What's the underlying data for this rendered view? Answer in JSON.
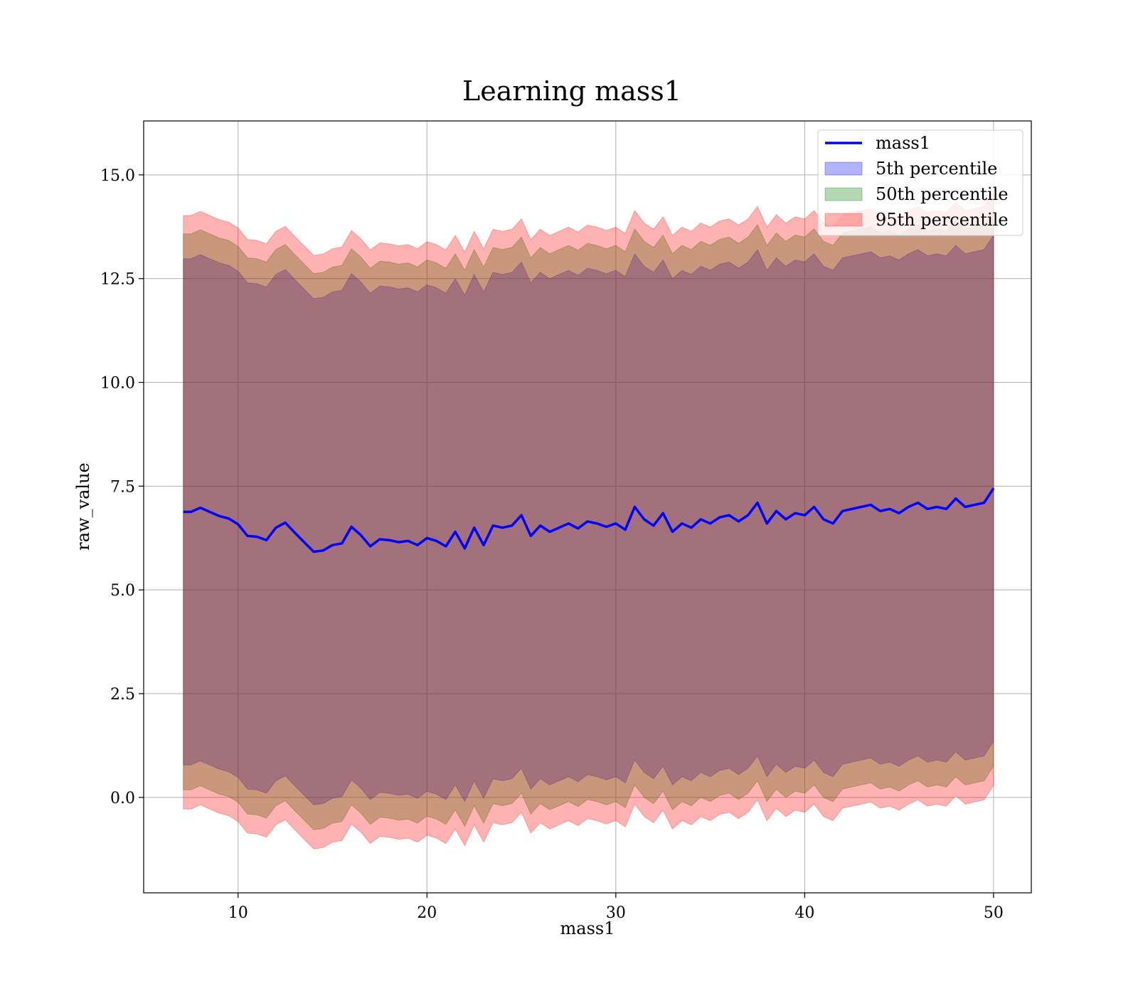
{
  "chart_data": {
    "type": "line",
    "title": "Learning mass1",
    "xlabel": "mass1",
    "ylabel": "raw_value",
    "xlim": [
      5,
      52
    ],
    "ylim": [
      -2.3,
      16.3
    ],
    "xticks": [
      10,
      20,
      30,
      40,
      50
    ],
    "yticks": [
      0.0,
      2.5,
      5.0,
      7.5,
      10.0,
      12.5,
      15.0
    ],
    "grid": true,
    "legend_position": "top-right",
    "legend": [
      "mass1",
      "5th percentile",
      "50th percentile",
      "95th percentile"
    ],
    "colors": {
      "line": "#0000ff",
      "band_5th": "#0000ff",
      "band_50th": "#008000",
      "band_95th": "#ff0000"
    },
    "x": [
      7.1,
      7.5,
      8.0,
      8.5,
      9.0,
      9.5,
      10.0,
      10.5,
      11.0,
      11.5,
      12.0,
      12.5,
      13.0,
      13.5,
      14.0,
      14.5,
      15.0,
      15.5,
      16.0,
      16.5,
      17.0,
      17.5,
      18.0,
      18.5,
      19.0,
      19.5,
      20.0,
      20.5,
      21.0,
      21.5,
      22.0,
      22.5,
      23.0,
      23.5,
      24.0,
      24.5,
      25.0,
      25.5,
      26.0,
      26.5,
      27.0,
      27.5,
      28.0,
      28.5,
      29.0,
      29.5,
      30.0,
      30.5,
      31.0,
      31.5,
      32.0,
      32.5,
      33.0,
      33.5,
      34.0,
      34.5,
      35.0,
      35.5,
      36.0,
      36.5,
      37.0,
      37.5,
      38.0,
      38.5,
      39.0,
      39.5,
      40.0,
      40.5,
      41.0,
      41.5,
      42.0,
      42.5,
      43.0,
      43.5,
      44.0,
      44.5,
      45.0,
      45.5,
      46.0,
      46.5,
      47.0,
      47.5,
      48.0,
      48.5,
      49.0,
      49.5,
      50.0
    ],
    "series": [
      {
        "name": "mass1",
        "values": [
          6.88,
          6.88,
          6.98,
          6.88,
          6.78,
          6.72,
          6.58,
          6.3,
          6.28,
          6.2,
          6.5,
          6.62,
          6.38,
          6.15,
          5.92,
          5.95,
          6.08,
          6.12,
          6.52,
          6.32,
          6.05,
          6.22,
          6.2,
          6.15,
          6.18,
          6.08,
          6.25,
          6.18,
          6.05,
          6.4,
          6.0,
          6.5,
          6.08,
          6.55,
          6.5,
          6.55,
          6.8,
          6.3,
          6.55,
          6.4,
          6.5,
          6.6,
          6.48,
          6.65,
          6.6,
          6.52,
          6.6,
          6.45,
          7.0,
          6.7,
          6.55,
          6.85,
          6.4,
          6.6,
          6.5,
          6.7,
          6.6,
          6.75,
          6.8,
          6.65,
          6.8,
          7.1,
          6.6,
          6.9,
          6.7,
          6.85,
          6.8,
          7.0,
          6.7,
          6.6,
          6.9,
          6.95,
          7.0,
          7.05,
          6.9,
          6.95,
          6.85,
          7.0,
          7.1,
          6.95,
          7.0,
          6.95,
          7.2,
          7.0,
          7.05,
          7.1,
          7.45
        ]
      },
      {
        "name": "5th percentile",
        "lower": [
          0.78,
          0.78,
          0.88,
          0.78,
          0.68,
          0.62,
          0.48,
          0.2,
          0.18,
          0.1,
          0.4,
          0.52,
          0.28,
          0.05,
          -0.18,
          -0.15,
          -0.02,
          0.02,
          0.42,
          0.22,
          -0.05,
          0.12,
          0.1,
          0.05,
          0.08,
          -0.02,
          0.15,
          0.08,
          -0.05,
          0.3,
          -0.1,
          0.4,
          -0.02,
          0.45,
          0.4,
          0.45,
          0.7,
          0.2,
          0.45,
          0.3,
          0.4,
          0.5,
          0.38,
          0.55,
          0.5,
          0.42,
          0.5,
          0.35,
          0.9,
          0.6,
          0.45,
          0.75,
          0.3,
          0.5,
          0.4,
          0.6,
          0.5,
          0.65,
          0.7,
          0.55,
          0.7,
          1.0,
          0.5,
          0.8,
          0.6,
          0.75,
          0.7,
          0.9,
          0.6,
          0.5,
          0.8,
          0.85,
          0.9,
          0.95,
          0.8,
          0.85,
          0.75,
          0.9,
          1.0,
          0.85,
          0.9,
          0.85,
          1.1,
          0.9,
          0.95,
          1.0,
          1.35
        ],
        "upper": [
          12.98,
          12.98,
          13.08,
          12.98,
          12.88,
          12.82,
          12.68,
          12.4,
          12.38,
          12.3,
          12.6,
          12.72,
          12.48,
          12.25,
          12.02,
          12.05,
          12.18,
          12.22,
          12.62,
          12.42,
          12.15,
          12.32,
          12.3,
          12.25,
          12.28,
          12.18,
          12.35,
          12.28,
          12.15,
          12.5,
          12.1,
          12.6,
          12.18,
          12.65,
          12.6,
          12.65,
          12.9,
          12.4,
          12.65,
          12.5,
          12.6,
          12.7,
          12.58,
          12.75,
          12.7,
          12.62,
          12.7,
          12.55,
          13.1,
          12.8,
          12.65,
          12.95,
          12.5,
          12.7,
          12.6,
          12.8,
          12.7,
          12.85,
          12.9,
          12.75,
          12.9,
          13.2,
          12.7,
          13.0,
          12.8,
          12.95,
          12.9,
          13.1,
          12.8,
          12.7,
          13.0,
          13.05,
          13.1,
          13.15,
          13.0,
          13.05,
          12.95,
          13.1,
          13.2,
          13.05,
          13.1,
          13.05,
          13.3,
          13.1,
          13.15,
          13.2,
          13.55
        ]
      },
      {
        "name": "50th percentile",
        "lower": [
          0.18,
          0.18,
          0.28,
          0.18,
          0.08,
          0.02,
          -0.12,
          -0.4,
          -0.42,
          -0.5,
          -0.2,
          -0.08,
          -0.32,
          -0.55,
          -0.78,
          -0.75,
          -0.62,
          -0.58,
          -0.18,
          -0.38,
          -0.65,
          -0.48,
          -0.5,
          -0.55,
          -0.52,
          -0.62,
          -0.45,
          -0.52,
          -0.65,
          -0.3,
          -0.7,
          -0.2,
          -0.62,
          -0.15,
          -0.2,
          -0.15,
          0.1,
          -0.4,
          -0.15,
          -0.3,
          -0.2,
          -0.1,
          -0.22,
          -0.05,
          -0.1,
          -0.18,
          -0.1,
          -0.25,
          0.3,
          0.0,
          -0.15,
          0.15,
          -0.3,
          -0.1,
          -0.2,
          0.0,
          -0.1,
          0.05,
          0.1,
          -0.05,
          0.1,
          0.4,
          -0.1,
          0.2,
          0.0,
          0.15,
          0.1,
          0.3,
          0.0,
          -0.1,
          0.2,
          0.25,
          0.3,
          0.35,
          0.2,
          0.25,
          0.15,
          0.3,
          0.4,
          0.25,
          0.3,
          0.25,
          0.5,
          0.3,
          0.35,
          0.4,
          0.75
        ],
        "upper": [
          13.58,
          13.58,
          13.68,
          13.58,
          13.48,
          13.42,
          13.28,
          13.0,
          12.98,
          12.9,
          13.2,
          13.32,
          13.08,
          12.85,
          12.62,
          12.65,
          12.78,
          12.82,
          13.22,
          13.02,
          12.75,
          12.92,
          12.9,
          12.85,
          12.88,
          12.78,
          12.95,
          12.88,
          12.75,
          13.1,
          12.7,
          13.2,
          12.78,
          13.25,
          13.2,
          13.25,
          13.5,
          13.0,
          13.25,
          13.1,
          13.2,
          13.3,
          13.18,
          13.35,
          13.3,
          13.22,
          13.3,
          13.15,
          13.7,
          13.4,
          13.25,
          13.55,
          13.1,
          13.3,
          13.2,
          13.4,
          13.3,
          13.45,
          13.5,
          13.35,
          13.5,
          13.8,
          13.3,
          13.6,
          13.4,
          13.55,
          13.5,
          13.7,
          13.4,
          13.3,
          13.6,
          13.65,
          13.7,
          13.75,
          13.6,
          13.65,
          13.55,
          13.7,
          13.8,
          13.65,
          13.7,
          13.65,
          13.9,
          13.7,
          13.75,
          13.8,
          14.15
        ]
      },
      {
        "name": "95th percentile",
        "lower": [
          -0.28,
          -0.28,
          -0.18,
          -0.28,
          -0.38,
          -0.44,
          -0.58,
          -0.86,
          -0.88,
          -0.96,
          -0.66,
          -0.54,
          -0.78,
          -1.01,
          -1.24,
          -1.21,
          -1.08,
          -1.04,
          -0.64,
          -0.84,
          -1.11,
          -0.94,
          -0.96,
          -1.01,
          -0.98,
          -1.08,
          -0.91,
          -0.98,
          -1.11,
          -0.76,
          -1.16,
          -0.66,
          -1.08,
          -0.61,
          -0.66,
          -0.61,
          -0.36,
          -0.86,
          -0.61,
          -0.76,
          -0.66,
          -0.56,
          -0.68,
          -0.51,
          -0.56,
          -0.64,
          -0.56,
          -0.71,
          -0.16,
          -0.46,
          -0.61,
          -0.31,
          -0.76,
          -0.56,
          -0.66,
          -0.46,
          -0.56,
          -0.41,
          -0.36,
          -0.51,
          -0.36,
          -0.06,
          -0.56,
          -0.26,
          -0.46,
          -0.31,
          -0.36,
          -0.16,
          -0.46,
          -0.56,
          -0.26,
          -0.21,
          -0.16,
          -0.11,
          -0.26,
          -0.21,
          -0.31,
          -0.16,
          -0.06,
          -0.21,
          -0.16,
          -0.21,
          0.04,
          -0.16,
          -0.11,
          -0.06,
          0.29
        ],
        "upper": [
          14.02,
          14.02,
          14.12,
          14.02,
          13.92,
          13.86,
          13.72,
          13.44,
          13.42,
          13.34,
          13.64,
          13.76,
          13.52,
          13.29,
          13.06,
          13.09,
          13.22,
          13.26,
          13.66,
          13.46,
          13.19,
          13.36,
          13.34,
          13.29,
          13.32,
          13.22,
          13.39,
          13.32,
          13.19,
          13.54,
          13.14,
          13.64,
          13.22,
          13.69,
          13.64,
          13.69,
          13.94,
          13.44,
          13.69,
          13.54,
          13.64,
          13.74,
          13.62,
          13.79,
          13.74,
          13.66,
          13.74,
          13.59,
          14.14,
          13.84,
          13.69,
          13.99,
          13.54,
          13.74,
          13.64,
          13.84,
          13.74,
          13.89,
          13.94,
          13.79,
          13.94,
          14.24,
          13.74,
          14.04,
          13.84,
          13.99,
          13.94,
          14.14,
          13.84,
          13.74,
          14.04,
          14.09,
          14.14,
          14.19,
          14.04,
          14.09,
          13.99,
          14.14,
          14.24,
          14.09,
          14.14,
          14.09,
          14.34,
          14.14,
          14.19,
          14.24,
          14.59
        ]
      }
    ]
  }
}
